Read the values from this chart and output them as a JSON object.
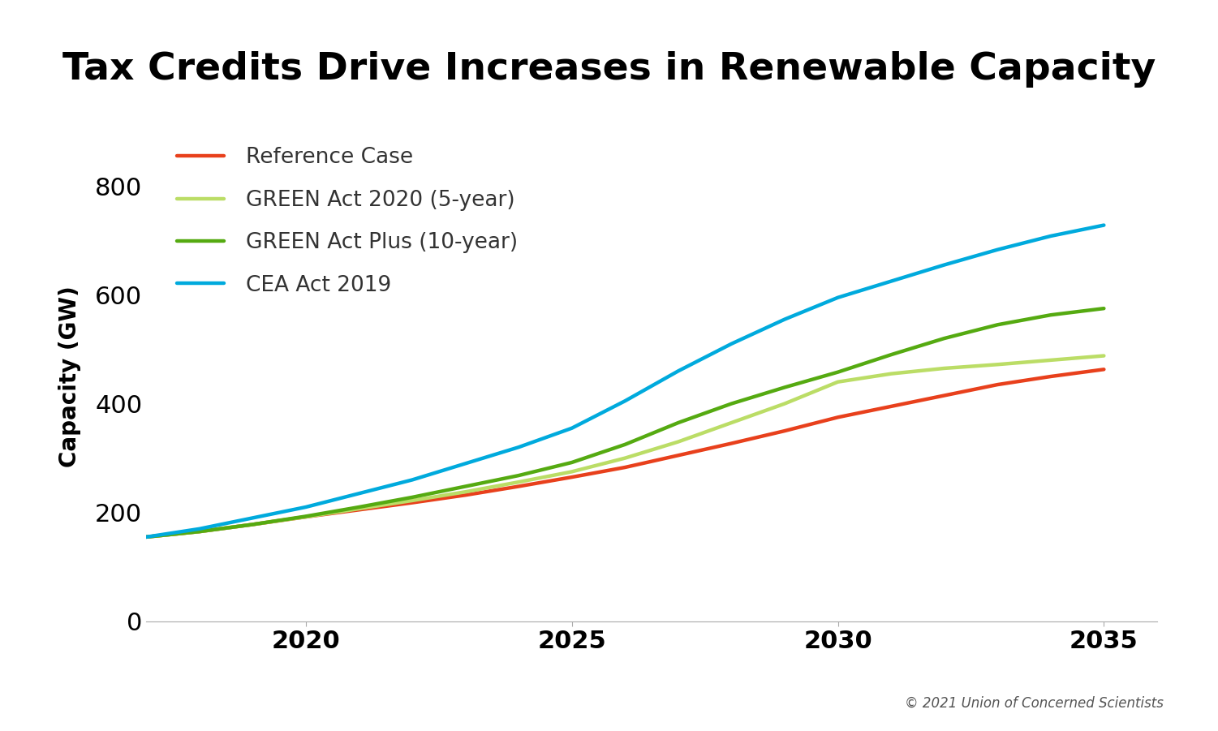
{
  "title": "Tax Credits Drive Increases in Renewable Capacity",
  "ylabel": "Capacity (GW)",
  "copyright": "© 2021 Union of Concerned Scientists",
  "xlim": [
    2017,
    2036
  ],
  "ylim": [
    0,
    900
  ],
  "yticks": [
    0,
    200,
    400,
    600,
    800
  ],
  "xticks": [
    2020,
    2025,
    2030,
    2035
  ],
  "series": [
    {
      "label": "Reference Case",
      "color": "#E8401C",
      "x": [
        2017,
        2018,
        2019,
        2020,
        2021,
        2022,
        2023,
        2024,
        2025,
        2026,
        2027,
        2028,
        2029,
        2030,
        2031,
        2032,
        2033,
        2034,
        2035
      ],
      "y": [
        155,
        165,
        178,
        192,
        205,
        218,
        232,
        248,
        265,
        283,
        305,
        327,
        350,
        375,
        395,
        415,
        435,
        450,
        463
      ]
    },
    {
      "label": "GREEN Act 2020 (5-year)",
      "color": "#BBDD66",
      "x": [
        2017,
        2018,
        2019,
        2020,
        2021,
        2022,
        2023,
        2024,
        2025,
        2026,
        2027,
        2028,
        2029,
        2030,
        2031,
        2032,
        2033,
        2034,
        2035
      ],
      "y": [
        155,
        165,
        178,
        192,
        207,
        222,
        238,
        256,
        275,
        300,
        330,
        365,
        400,
        440,
        455,
        465,
        472,
        480,
        488
      ]
    },
    {
      "label": "GREEN Act Plus (10-year)",
      "color": "#55AA11",
      "x": [
        2017,
        2018,
        2019,
        2020,
        2021,
        2022,
        2023,
        2024,
        2025,
        2026,
        2027,
        2028,
        2029,
        2030,
        2031,
        2032,
        2033,
        2034,
        2035
      ],
      "y": [
        155,
        165,
        178,
        193,
        210,
        228,
        248,
        268,
        292,
        325,
        365,
        400,
        430,
        458,
        490,
        520,
        545,
        563,
        575
      ]
    },
    {
      "label": "CEA Act 2019",
      "color": "#00AADD",
      "x": [
        2017,
        2018,
        2019,
        2020,
        2021,
        2022,
        2023,
        2024,
        2025,
        2026,
        2027,
        2028,
        2029,
        2030,
        2031,
        2032,
        2033,
        2034,
        2035
      ],
      "y": [
        155,
        170,
        190,
        210,
        235,
        260,
        290,
        320,
        355,
        405,
        460,
        510,
        555,
        595,
        625,
        655,
        683,
        708,
        728
      ]
    }
  ],
  "title_fontsize": 34,
  "label_fontsize": 20,
  "tick_fontsize": 22,
  "legend_fontsize": 19,
  "copyright_fontsize": 12,
  "line_width": 3.2,
  "background_color": "#ffffff"
}
